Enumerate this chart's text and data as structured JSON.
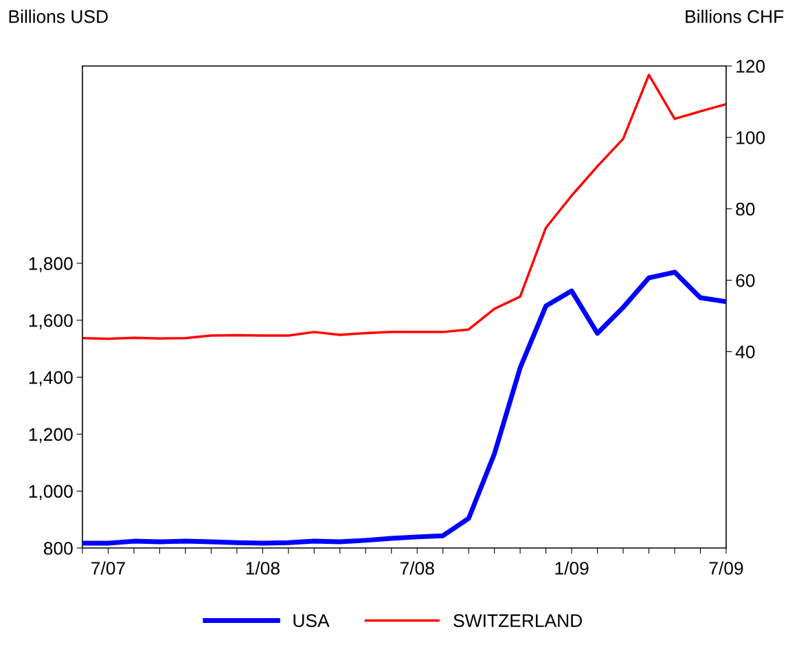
{
  "chart_data": {
    "type": "line",
    "ylabel": "Billions USD",
    "y2label": "Billions CHF",
    "categories": [
      null,
      "7/07",
      null,
      null,
      null,
      null,
      null,
      "1/08",
      null,
      null,
      null,
      null,
      null,
      "7/08",
      null,
      null,
      null,
      null,
      null,
      "1/09",
      null,
      null,
      null,
      null,
      null,
      "7/09"
    ],
    "series": [
      {
        "name": "USA",
        "color": "#0000ff",
        "values": [
          817,
          817,
          824,
          822,
          824,
          822,
          819,
          817,
          819,
          824,
          822,
          827,
          834,
          839,
          843,
          904,
          1131,
          1433,
          1650,
          1703,
          1554,
          1645,
          1749,
          1769,
          1679,
          1665
        ]
      },
      {
        "name": "SWITZERLAND",
        "color": "#ff0000",
        "axis": "y2",
        "values": [
          43.8,
          43.6,
          43.9,
          43.7,
          43.8,
          44.5,
          44.6,
          44.5,
          44.5,
          45.5,
          44.7,
          45.2,
          45.5,
          45.5,
          45.5,
          46.2,
          52.0,
          55.4,
          74.7,
          83.7,
          91.9,
          99.6,
          117.5,
          105.2,
          107.3,
          109.3
        ]
      }
    ],
    "ylim": [
      800,
      2493
    ],
    "yticks": [
      {
        "value": 800,
        "label": "800"
      },
      {
        "value": 1000,
        "label": "1,000"
      },
      {
        "value": 1200,
        "label": "1,200"
      },
      {
        "value": 1400,
        "label": "1,400"
      },
      {
        "value": 1600,
        "label": "1,600"
      },
      {
        "value": 1800,
        "label": "1,800"
      }
    ],
    "y2lim": [
      -15,
      120
    ],
    "y2ticks": [
      40,
      60,
      80,
      100,
      120
    ],
    "legend": "bottom",
    "grid": false,
    "marker": "none",
    "line_style": "solid"
  }
}
